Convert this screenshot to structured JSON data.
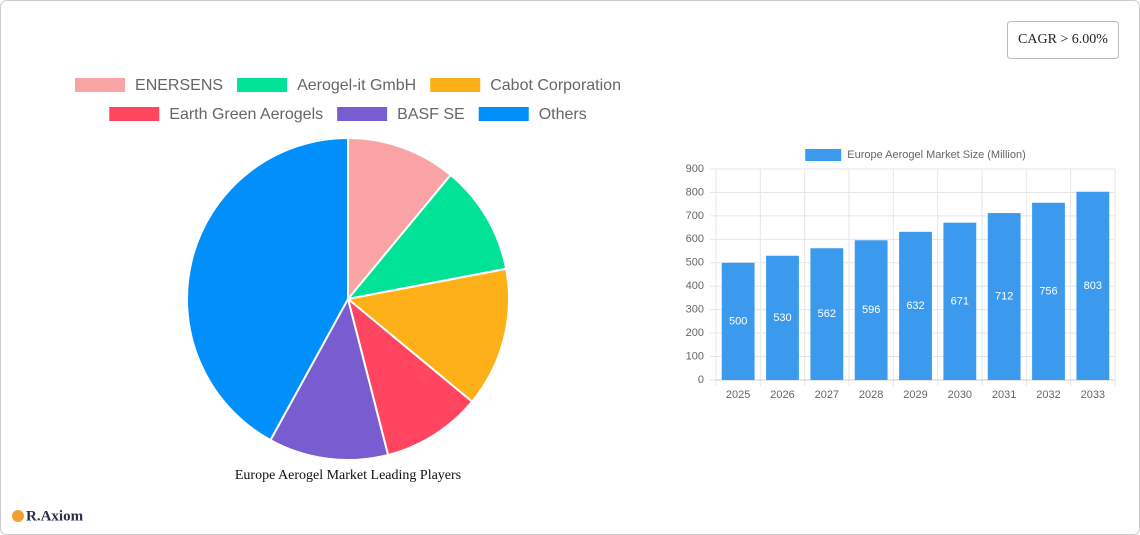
{
  "badge": "CAGR > 6.00%",
  "logo": "R.Axiom",
  "chart_data": [
    {
      "type": "pie",
      "title": "Europe Aerogel Market Leading Players",
      "categories": [
        "ENERSENS",
        "Aerogel-it GmbH",
        "Cabot Corporation",
        "Earth Green Aerogels",
        "BASF SE",
        "Others"
      ],
      "values": [
        11,
        11,
        14,
        10,
        12,
        42
      ],
      "colors": [
        "#f9a3a4",
        "#00e396",
        "#feb019",
        "#ff4560",
        "#775dd0",
        "#008ffb"
      ]
    },
    {
      "type": "bar",
      "categories": [
        "2025",
        "2026",
        "2027",
        "2028",
        "2029",
        "2030",
        "2031",
        "2032",
        "2033"
      ],
      "series": [
        {
          "name": "Europe Aerogel Market Size (Million)",
          "color": "#3b9aee",
          "values": [
            500,
            530,
            562,
            596,
            632,
            671,
            712,
            756,
            803
          ]
        }
      ],
      "ylim": [
        0,
        900
      ],
      "yticks": [
        0,
        100,
        200,
        300,
        400,
        500,
        600,
        700,
        800,
        900
      ],
      "grid": true
    }
  ]
}
